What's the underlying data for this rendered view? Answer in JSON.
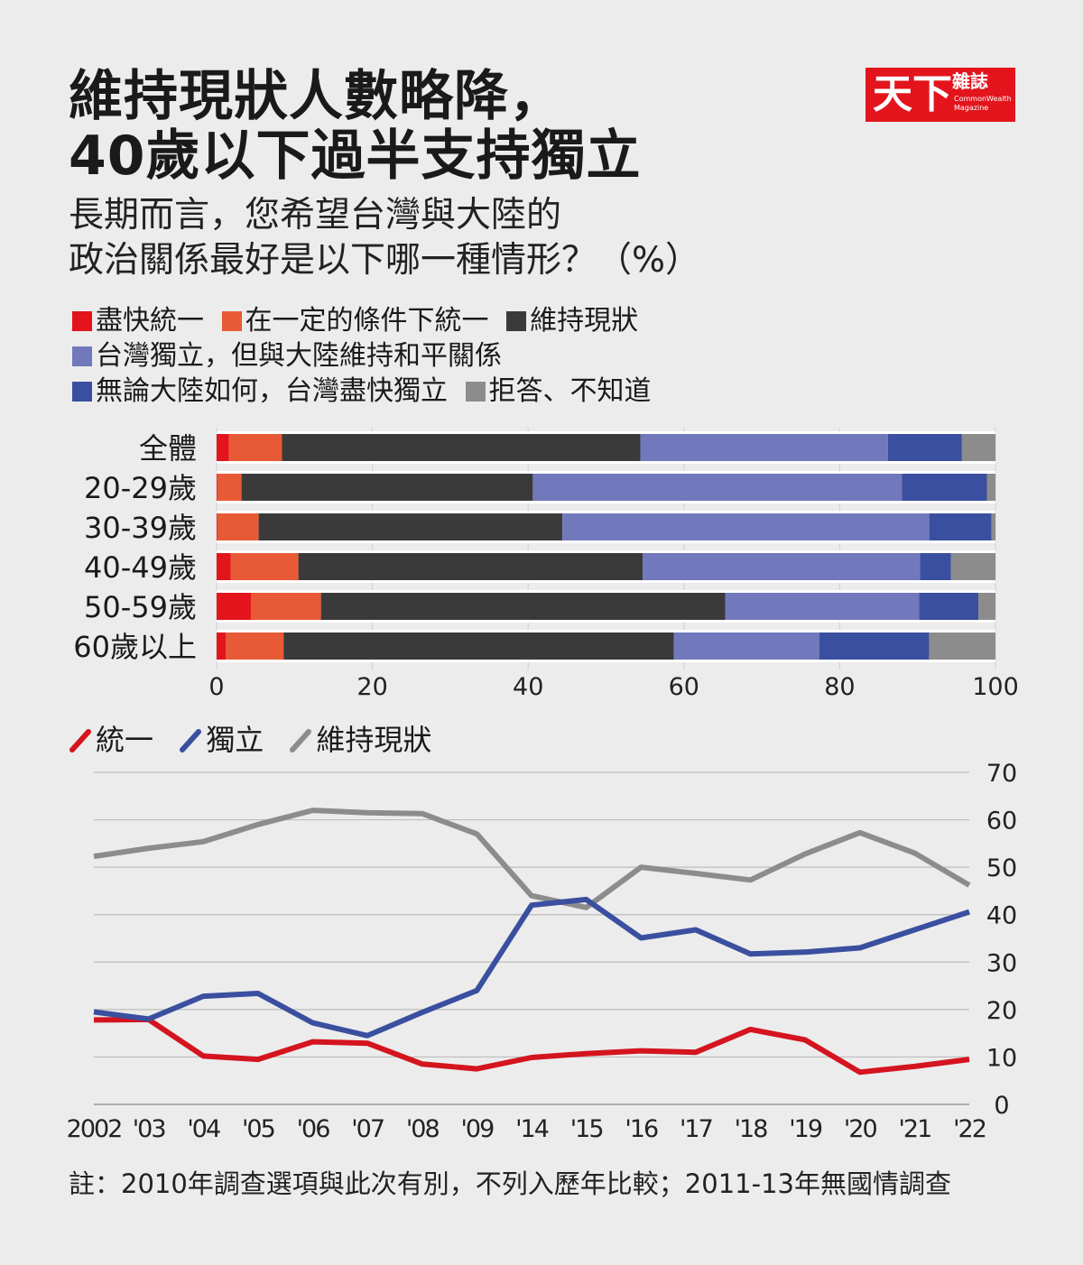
{
  "header": {
    "title_lines": [
      "維持現狀人數略降，",
      "40歲以下過半支持獨立"
    ],
    "subtitle_lines": [
      "長期而言，您希望台灣與大陸的",
      "政治關係最好是以下哪一種情形？（%）"
    ]
  },
  "logo": {
    "main": "天下",
    "small": "雜誌",
    "eng": "CommonWealth Magazine"
  },
  "bar_legend": {
    "items": [
      {
        "label": "盡快統一",
        "color": "#e3141c"
      },
      {
        "label": "在一定的條件下統一",
        "color": "#e85a35"
      },
      {
        "label": "維持現狀",
        "color": "#3a3a3a"
      },
      {
        "label": "台灣獨立，但與大陸維持和平關係",
        "color": "#7178bb"
      },
      {
        "label": "無論大陸如何，台灣盡快獨立",
        "color": "#3a4f9f"
      },
      {
        "label": "拒答、不知道",
        "color": "#8c8c8c"
      }
    ]
  },
  "line_legend": {
    "items": [
      {
        "label": "統一",
        "color": "#d4141f"
      },
      {
        "label": "獨立",
        "color": "#3a4f9f"
      },
      {
        "label": "維持現狀",
        "color": "#8c8c8c"
      }
    ]
  },
  "footnote": "註：2010年調查選項與此次有別，不列入歷年比較；2011-13年無國情調查",
  "chart_data": [
    {
      "type": "bar",
      "stacked": true,
      "orientation": "horizontal",
      "categories": [
        "全體",
        "20-29歲",
        "30-39歲",
        "40-49歲",
        "50-59歲",
        "60歲以上"
      ],
      "series": [
        {
          "name": "盡快統一",
          "color": "#e3141c",
          "values": [
            1.6,
            0.1,
            0.1,
            1.8,
            4.4,
            1.2
          ]
        },
        {
          "name": "在一定的條件下統一",
          "color": "#e85a35",
          "values": [
            6.8,
            3.1,
            5.3,
            8.7,
            9.0,
            7.4
          ]
        },
        {
          "name": "維持現狀",
          "color": "#3a3a3a",
          "values": [
            46.0,
            37.4,
            39.0,
            44.2,
            51.9,
            50.1
          ]
        },
        {
          "name": "台灣獨立，但與大陸維持和平關係",
          "color": "#7178bb",
          "values": [
            31.8,
            47.4,
            47.1,
            35.6,
            24.9,
            18.7
          ]
        },
        {
          "name": "無論大陸如何，台灣盡快獨立",
          "color": "#3a4f9f",
          "values": [
            9.5,
            10.9,
            8.0,
            4.0,
            7.6,
            14.1
          ]
        },
        {
          "name": "拒答、不知道",
          "color": "#8c8c8c",
          "values": [
            4.3,
            1.1,
            0.5,
            5.7,
            2.2,
            8.5
          ]
        }
      ],
      "xlim": [
        0,
        100
      ],
      "xticks": [
        "0",
        "20",
        "40",
        "60",
        "80",
        "100"
      ],
      "grid": true
    },
    {
      "type": "line",
      "x": [
        "2002",
        "'03",
        "'04",
        "'05",
        "'06",
        "'07",
        "'08",
        "'09",
        "'14",
        "'15",
        "'16",
        "'17",
        "'18",
        "'19",
        "'20",
        "'21",
        "'22"
      ],
      "series": [
        {
          "name": "統一",
          "color": "#d4141f",
          "values": [
            17.8,
            17.9,
            10.2,
            9.5,
            13.2,
            12.9,
            8.5,
            7.5,
            9.9,
            10.7,
            11.3,
            11.0,
            15.8,
            13.6,
            6.8,
            8.0,
            9.5
          ]
        },
        {
          "name": "獨立",
          "color": "#3a4f9f",
          "values": [
            19.5,
            18.0,
            22.8,
            23.4,
            17.2,
            14.5,
            19.4,
            24.0,
            42.0,
            43.2,
            35.1,
            36.8,
            31.7,
            32.1,
            33.0,
            36.8,
            40.6
          ]
        },
        {
          "name": "維持現狀",
          "color": "#8c8c8c",
          "values": [
            52.3,
            54.0,
            55.4,
            59.0,
            62.0,
            61.5,
            61.3,
            57.0,
            44.0,
            41.5,
            50.0,
            48.7,
            47.3,
            52.8,
            57.3,
            53.0,
            46.2
          ]
        }
      ],
      "ylim": [
        0,
        70
      ],
      "yticks": [
        "0",
        "10",
        "20",
        "30",
        "40",
        "50",
        "60",
        "70"
      ],
      "yaxis_side": "right",
      "grid": true
    }
  ]
}
